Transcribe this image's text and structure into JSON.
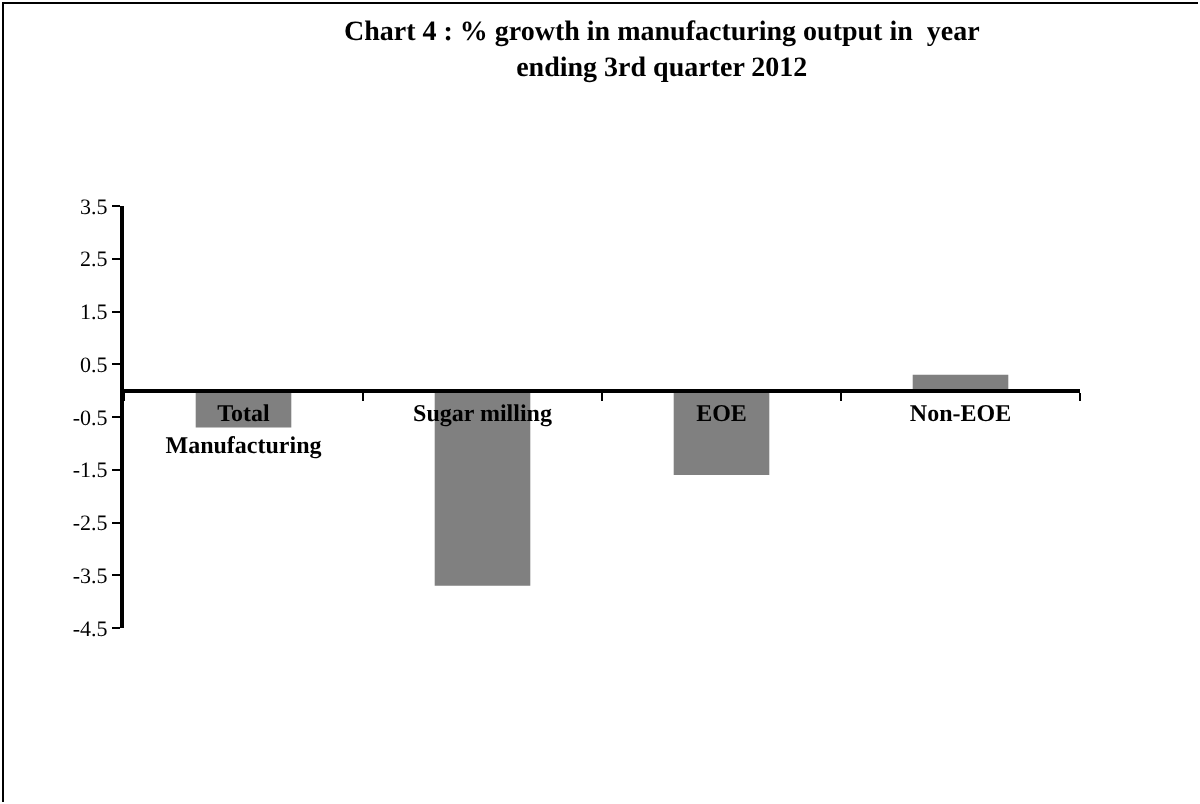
{
  "chart_data": {
    "type": "bar",
    "title": "Chart 4 : % growth in manufacturing output in  year\nending 3rd quarter 2012",
    "categories": [
      "Total Manufacturing",
      "Sugar milling",
      "EOE",
      "Non-EOE"
    ],
    "values": [
      -0.7,
      -3.7,
      -1.6,
      0.3
    ],
    "color": "#808080",
    "ylim": [
      -4.5,
      3.5
    ],
    "yticks": [
      3.5,
      2.5,
      1.5,
      0.5,
      -0.5,
      -1.5,
      -2.5,
      -3.5,
      -4.5
    ],
    "grid": false,
    "legend": false
  }
}
